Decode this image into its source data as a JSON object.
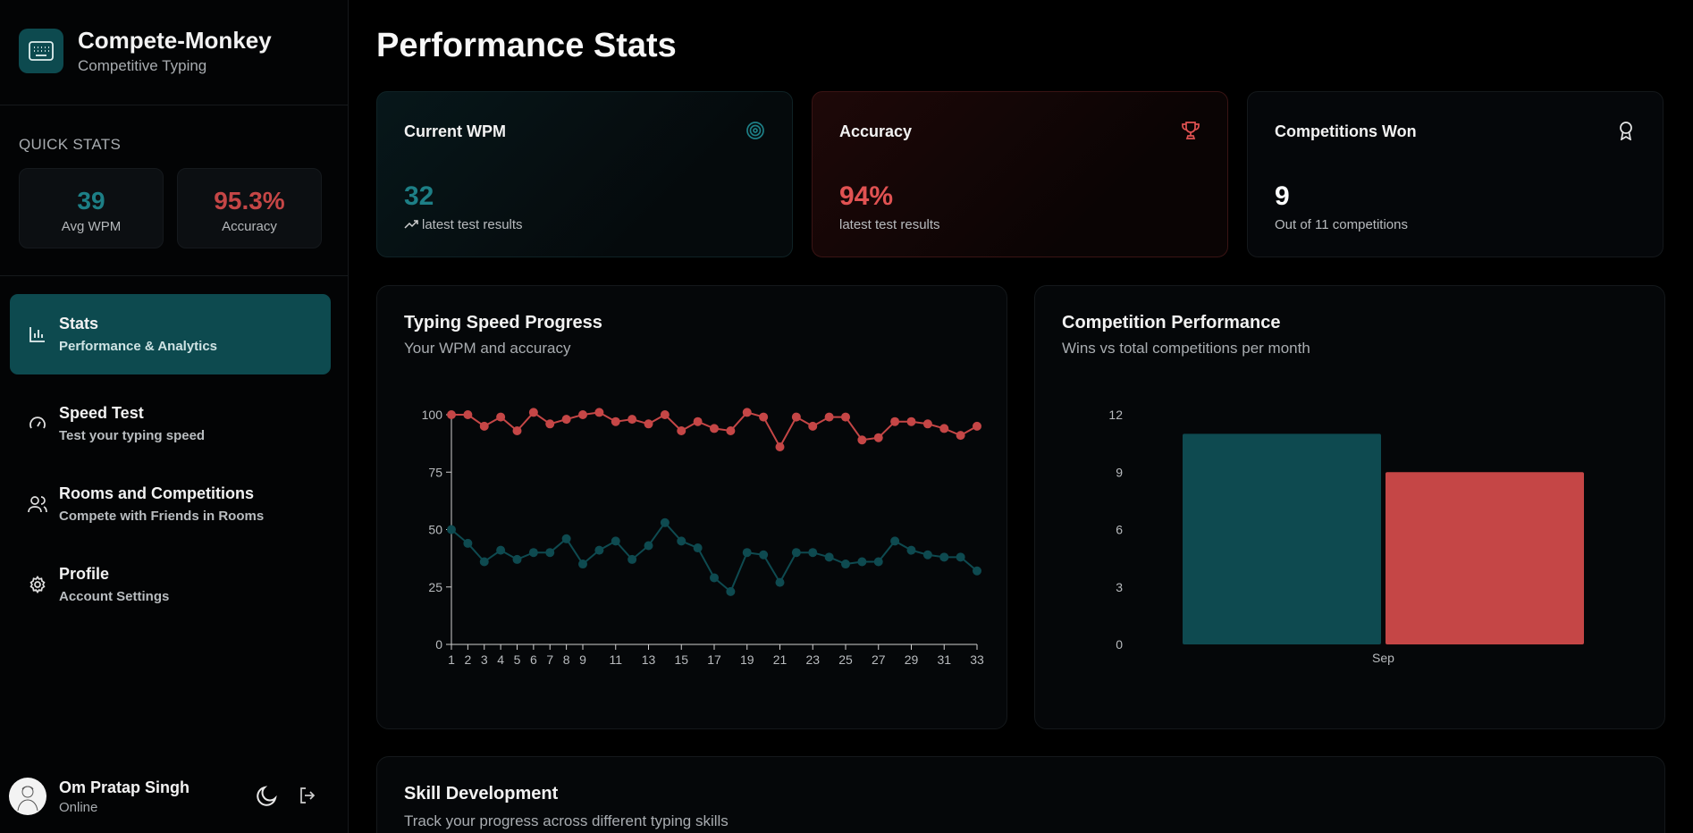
{
  "brand": {
    "title": "Compete-Monkey",
    "subtitle": "Competitive Typing"
  },
  "quick_stats": {
    "label": "QUICK STATS",
    "avg_wpm": {
      "value": "39",
      "caption": "Avg WPM",
      "color": "#1d7f86"
    },
    "accuracy": {
      "value": "95.3%",
      "caption": "Accuracy",
      "color": "#c54646"
    }
  },
  "nav": [
    {
      "title": "Stats",
      "subtitle": "Performance & Analytics",
      "icon": "bar-chart-icon",
      "active": true
    },
    {
      "title": "Speed Test",
      "subtitle": "Test your typing speed",
      "icon": "gauge-icon",
      "active": false
    },
    {
      "title": "Rooms and Competitions",
      "subtitle": "Compete with Friends in Rooms",
      "icon": "users-icon",
      "active": false
    },
    {
      "title": "Profile",
      "subtitle": "Account Settings",
      "icon": "gear-icon",
      "active": false
    }
  ],
  "user": {
    "name": "Om Pratap Singh",
    "status": "Online"
  },
  "page_title": "Performance Stats",
  "stat_cards": [
    {
      "title": "Current WPM",
      "value": "32",
      "note": "latest test results",
      "icon": "target-icon",
      "value_color": "#1d7f86"
    },
    {
      "title": "Accuracy",
      "value": "94%",
      "note": "latest test results",
      "icon": "trophy-icon",
      "value_color": "#e05252"
    },
    {
      "title": "Competitions Won",
      "value": "9",
      "note": "Out of 11 competitions",
      "icon": "award-icon",
      "value_color": "#ffffff"
    }
  ],
  "speed_panel": {
    "title": "Typing Speed Progress",
    "subtitle": "Your WPM and accuracy"
  },
  "competition_panel": {
    "title": "Competition Performance",
    "subtitle": "Wins vs total competitions per month"
  },
  "skill_panel": {
    "title": "Skill Development",
    "subtitle": "Track your progress across different typing skills"
  },
  "colors": {
    "teal": "#0e4a50",
    "red": "#c54646",
    "accent_teal": "#1d7f86"
  },
  "chart_data": [
    {
      "type": "line",
      "title": "Typing Speed Progress",
      "x": [
        1,
        2,
        3,
        4,
        5,
        6,
        7,
        8,
        9,
        10,
        11,
        12,
        13,
        14,
        15,
        16,
        17,
        18,
        19,
        20,
        21,
        22,
        23,
        24,
        25,
        26,
        27,
        28,
        29,
        30,
        31,
        32,
        33
      ],
      "x_tick_labels": [
        "1",
        "2",
        "3",
        "4",
        "5",
        "6",
        "7",
        "8",
        "9",
        "11",
        "13",
        "15",
        "17",
        "19",
        "21",
        "23",
        "25",
        "27",
        "29",
        "31",
        "33"
      ],
      "ylim": [
        0,
        100
      ],
      "y_ticks": [
        0,
        25,
        50,
        75,
        100
      ],
      "series": [
        {
          "color": "#c54646",
          "values": [
            100,
            100,
            95,
            99,
            93,
            101,
            96,
            98,
            100,
            101,
            97,
            98,
            96,
            100,
            93,
            97,
            94,
            93,
            101,
            99,
            86,
            99,
            95,
            99,
            99,
            89,
            90,
            97,
            97,
            96,
            94,
            91,
            95
          ]
        },
        {
          "color": "#0e4a50",
          "values": [
            50,
            44,
            36,
            41,
            37,
            40,
            40,
            46,
            35,
            41,
            45,
            37,
            43,
            53,
            45,
            42,
            29,
            23,
            40,
            39,
            27,
            40,
            40,
            38,
            35,
            36,
            36,
            45,
            41,
            39,
            38,
            38,
            32
          ]
        }
      ]
    },
    {
      "type": "bar",
      "title": "Competition Performance",
      "categories": [
        "Sep"
      ],
      "ylim": [
        0,
        12
      ],
      "y_ticks": [
        0,
        3,
        6,
        9,
        12
      ],
      "series": [
        {
          "color": "#0e4a50",
          "values": [
            11
          ]
        },
        {
          "color": "#c54646",
          "values": [
            9
          ]
        }
      ]
    }
  ]
}
